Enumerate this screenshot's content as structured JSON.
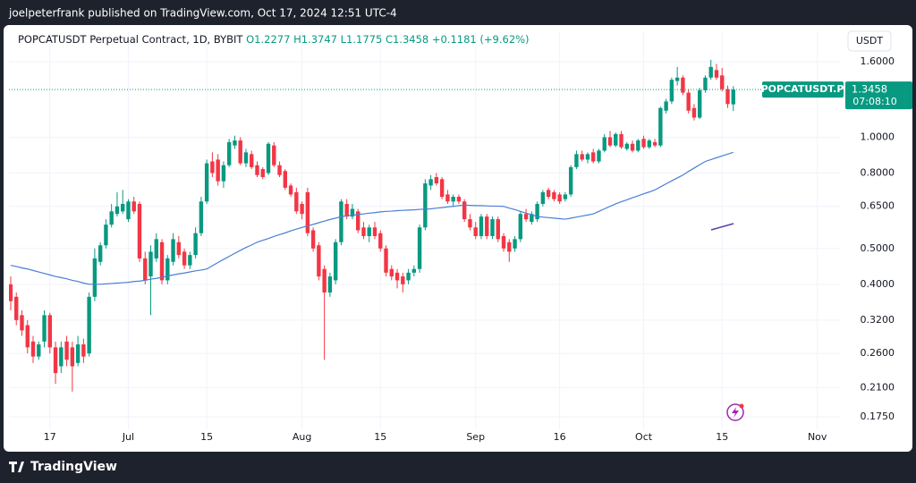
{
  "header": {
    "published": "joelpeterfrank published on TradingView.com, Oct 17, 2024 12:51 UTC-4"
  },
  "footer": {
    "brand": "TradingView"
  },
  "chart_data": {
    "type": "candlestick",
    "legend": {
      "symbol": "POPCATUSDT Perpetual Contract, 1D, BYBIT",
      "open": "O1.2277",
      "high": "H1.3747",
      "low": "L1.1775",
      "close": "C1.3458",
      "change": "+0.1181 (+9.62%)"
    },
    "currency": "USDT",
    "tag_symbol": "POPCATUSDT.P",
    "last_price": 1.3458,
    "countdown": "07:08:10",
    "up_color": "#089981",
    "down_color": "#f23645",
    "log_scale": true,
    "grid": true,
    "xlim": [
      "2024-06-09",
      "2024-11-06"
    ],
    "ylim": [
      0.162,
      1.935
    ],
    "xticks": [
      {
        "value": "2024-06-17",
        "label": "17"
      },
      {
        "value": "2024-07-01",
        "label": "Jul"
      },
      {
        "value": "2024-07-15",
        "label": "15"
      },
      {
        "value": "2024-08-01",
        "label": "Aug"
      },
      {
        "value": "2024-08-15",
        "label": "15"
      },
      {
        "value": "2024-09-01",
        "label": "Sep"
      },
      {
        "value": "2024-09-16",
        "label": "16"
      },
      {
        "value": "2024-10-01",
        "label": "Oct"
      },
      {
        "value": "2024-10-15",
        "label": "15"
      },
      {
        "value": "2024-11-01",
        "label": "Nov"
      }
    ],
    "yticks": [
      {
        "value": 1.6,
        "label": "1.6000"
      },
      {
        "value": 1.0,
        "label": "1.0000"
      },
      {
        "value": 0.8,
        "label": "0.8000"
      },
      {
        "value": 0.65,
        "label": "0.6500"
      },
      {
        "value": 0.5,
        "label": "0.5000"
      },
      {
        "value": 0.4,
        "label": "0.4000"
      },
      {
        "value": 0.32,
        "label": "0.3200"
      },
      {
        "value": 0.26,
        "label": "0.2600"
      },
      {
        "value": 0.21,
        "label": "0.2100"
      },
      {
        "value": 0.175,
        "label": "0.1750"
      }
    ],
    "x": [
      "2024-06-10",
      "2024-06-11",
      "2024-06-12",
      "2024-06-13",
      "2024-06-14",
      "2024-06-15",
      "2024-06-16",
      "2024-06-17",
      "2024-06-18",
      "2024-06-19",
      "2024-06-20",
      "2024-06-21",
      "2024-06-22",
      "2024-06-23",
      "2024-06-24",
      "2024-06-25",
      "2024-06-26",
      "2024-06-27",
      "2024-06-28",
      "2024-06-29",
      "2024-06-30",
      "2024-07-01",
      "2024-07-02",
      "2024-07-03",
      "2024-07-04",
      "2024-07-05",
      "2024-07-06",
      "2024-07-07",
      "2024-07-08",
      "2024-07-09",
      "2024-07-10",
      "2024-07-11",
      "2024-07-12",
      "2024-07-13",
      "2024-07-14",
      "2024-07-15",
      "2024-07-16",
      "2024-07-17",
      "2024-07-18",
      "2024-07-19",
      "2024-07-20",
      "2024-07-21",
      "2024-07-22",
      "2024-07-23",
      "2024-07-24",
      "2024-07-25",
      "2024-07-26",
      "2024-07-27",
      "2024-07-28",
      "2024-07-29",
      "2024-07-30",
      "2024-07-31",
      "2024-08-01",
      "2024-08-02",
      "2024-08-03",
      "2024-08-04",
      "2024-08-05",
      "2024-08-06",
      "2024-08-07",
      "2024-08-08",
      "2024-08-09",
      "2024-08-10",
      "2024-08-11",
      "2024-08-12",
      "2024-08-13",
      "2024-08-14",
      "2024-08-15",
      "2024-08-16",
      "2024-08-17",
      "2024-08-18",
      "2024-08-19",
      "2024-08-20",
      "2024-08-21",
      "2024-08-22",
      "2024-08-23",
      "2024-08-24",
      "2024-08-25",
      "2024-08-26",
      "2024-08-27",
      "2024-08-28",
      "2024-08-29",
      "2024-08-30",
      "2024-08-31",
      "2024-09-01",
      "2024-09-02",
      "2024-09-03",
      "2024-09-04",
      "2024-09-05",
      "2024-09-06",
      "2024-09-07",
      "2024-09-08",
      "2024-09-09",
      "2024-09-10",
      "2024-09-11",
      "2024-09-12",
      "2024-09-13",
      "2024-09-14",
      "2024-09-15",
      "2024-09-16",
      "2024-09-17",
      "2024-09-18",
      "2024-09-19",
      "2024-09-20",
      "2024-09-21",
      "2024-09-22",
      "2024-09-23",
      "2024-09-24",
      "2024-09-25",
      "2024-09-26",
      "2024-09-27",
      "2024-09-28",
      "2024-09-29",
      "2024-09-30",
      "2024-10-01",
      "2024-10-02",
      "2024-10-03",
      "2024-10-04",
      "2024-10-05",
      "2024-10-06",
      "2024-10-07",
      "2024-10-08",
      "2024-10-09",
      "2024-10-10",
      "2024-10-11",
      "2024-10-12",
      "2024-10-13",
      "2024-10-14",
      "2024-10-15",
      "2024-10-16",
      "2024-10-17"
    ],
    "ohlc": [
      [
        0.4,
        0.42,
        0.34,
        0.36
      ],
      [
        0.37,
        0.38,
        0.31,
        0.32
      ],
      [
        0.33,
        0.34,
        0.29,
        0.3
      ],
      [
        0.31,
        0.32,
        0.26,
        0.27
      ],
      [
        0.28,
        0.29,
        0.245,
        0.255
      ],
      [
        0.255,
        0.28,
        0.25,
        0.275
      ],
      [
        0.28,
        0.34,
        0.27,
        0.33
      ],
      [
        0.33,
        0.335,
        0.26,
        0.27
      ],
      [
        0.27,
        0.28,
        0.215,
        0.23
      ],
      [
        0.24,
        0.28,
        0.23,
        0.27
      ],
      [
        0.28,
        0.29,
        0.24,
        0.25
      ],
      [
        0.27,
        0.28,
        0.205,
        0.24
      ],
      [
        0.245,
        0.29,
        0.24,
        0.275
      ],
      [
        0.275,
        0.285,
        0.245,
        0.255
      ],
      [
        0.26,
        0.38,
        0.255,
        0.37
      ],
      [
        0.37,
        0.5,
        0.36,
        0.47
      ],
      [
        0.46,
        0.52,
        0.45,
        0.51
      ],
      [
        0.51,
        0.6,
        0.5,
        0.58
      ],
      [
        0.58,
        0.66,
        0.57,
        0.63
      ],
      [
        0.62,
        0.71,
        0.61,
        0.65
      ],
      [
        0.63,
        0.72,
        0.62,
        0.66
      ],
      [
        0.6,
        0.68,
        0.59,
        0.67
      ],
      [
        0.67,
        0.69,
        0.62,
        0.63
      ],
      [
        0.66,
        0.67,
        0.46,
        0.47
      ],
      [
        0.47,
        0.49,
        0.4,
        0.41
      ],
      [
        0.42,
        0.51,
        0.33,
        0.49
      ],
      [
        0.47,
        0.55,
        0.46,
        0.53
      ],
      [
        0.52,
        0.53,
        0.4,
        0.41
      ],
      [
        0.41,
        0.48,
        0.4,
        0.47
      ],
      [
        0.46,
        0.55,
        0.45,
        0.53
      ],
      [
        0.52,
        0.54,
        0.47,
        0.48
      ],
      [
        0.49,
        0.5,
        0.44,
        0.45
      ],
      [
        0.45,
        0.49,
        0.44,
        0.48
      ],
      [
        0.48,
        0.57,
        0.47,
        0.55
      ],
      [
        0.55,
        0.69,
        0.54,
        0.67
      ],
      [
        0.67,
        0.87,
        0.66,
        0.85
      ],
      [
        0.86,
        0.91,
        0.78,
        0.8
      ],
      [
        0.87,
        0.9,
        0.74,
        0.76
      ],
      [
        0.76,
        0.86,
        0.73,
        0.84
      ],
      [
        0.84,
        0.99,
        0.83,
        0.97
      ],
      [
        0.95,
        1.01,
        0.93,
        0.98
      ],
      [
        0.98,
        1.0,
        0.84,
        0.85
      ],
      [
        0.85,
        0.93,
        0.83,
        0.91
      ],
      [
        0.9,
        0.92,
        0.82,
        0.83
      ],
      [
        0.84,
        0.86,
        0.78,
        0.79
      ],
      [
        0.82,
        0.83,
        0.77,
        0.78
      ],
      [
        0.8,
        0.97,
        0.79,
        0.96
      ],
      [
        0.95,
        0.97,
        0.83,
        0.84
      ],
      [
        0.84,
        0.86,
        0.78,
        0.79
      ],
      [
        0.81,
        0.82,
        0.72,
        0.73
      ],
      [
        0.74,
        0.75,
        0.69,
        0.7
      ],
      [
        0.71,
        0.73,
        0.62,
        0.63
      ],
      [
        0.66,
        0.67,
        0.6,
        0.62
      ],
      [
        0.71,
        0.73,
        0.54,
        0.55
      ],
      [
        0.56,
        0.57,
        0.49,
        0.5
      ],
      [
        0.51,
        0.52,
        0.41,
        0.42
      ],
      [
        0.44,
        0.45,
        0.25,
        0.38
      ],
      [
        0.38,
        0.43,
        0.37,
        0.42
      ],
      [
        0.41,
        0.53,
        0.4,
        0.52
      ],
      [
        0.52,
        0.68,
        0.51,
        0.67
      ],
      [
        0.66,
        0.68,
        0.6,
        0.61
      ],
      [
        0.61,
        0.66,
        0.6,
        0.64
      ],
      [
        0.63,
        0.64,
        0.55,
        0.56
      ],
      [
        0.57,
        0.59,
        0.53,
        0.54
      ],
      [
        0.54,
        0.58,
        0.52,
        0.57
      ],
      [
        0.57,
        0.59,
        0.53,
        0.54
      ],
      [
        0.55,
        0.56,
        0.49,
        0.5
      ],
      [
        0.5,
        0.51,
        0.42,
        0.43
      ],
      [
        0.44,
        0.45,
        0.41,
        0.42
      ],
      [
        0.43,
        0.44,
        0.39,
        0.41
      ],
      [
        0.42,
        0.43,
        0.38,
        0.4
      ],
      [
        0.41,
        0.44,
        0.4,
        0.43
      ],
      [
        0.43,
        0.45,
        0.42,
        0.44
      ],
      [
        0.44,
        0.58,
        0.43,
        0.57
      ],
      [
        0.57,
        0.77,
        0.56,
        0.75
      ],
      [
        0.74,
        0.79,
        0.72,
        0.77
      ],
      [
        0.78,
        0.8,
        0.74,
        0.75
      ],
      [
        0.77,
        0.78,
        0.68,
        0.69
      ],
      [
        0.7,
        0.72,
        0.66,
        0.67
      ],
      [
        0.67,
        0.7,
        0.65,
        0.69
      ],
      [
        0.69,
        0.7,
        0.66,
        0.67
      ],
      [
        0.67,
        0.68,
        0.59,
        0.6
      ],
      [
        0.6,
        0.62,
        0.56,
        0.57
      ],
      [
        0.57,
        0.59,
        0.53,
        0.54
      ],
      [
        0.54,
        0.62,
        0.53,
        0.61
      ],
      [
        0.61,
        0.62,
        0.53,
        0.54
      ],
      [
        0.54,
        0.61,
        0.53,
        0.6
      ],
      [
        0.6,
        0.61,
        0.52,
        0.53
      ],
      [
        0.54,
        0.55,
        0.49,
        0.5
      ],
      [
        0.52,
        0.53,
        0.46,
        0.49
      ],
      [
        0.5,
        0.54,
        0.49,
        0.53
      ],
      [
        0.53,
        0.63,
        0.52,
        0.62
      ],
      [
        0.62,
        0.64,
        0.59,
        0.6
      ],
      [
        0.59,
        0.63,
        0.58,
        0.62
      ],
      [
        0.6,
        0.67,
        0.59,
        0.66
      ],
      [
        0.66,
        0.72,
        0.65,
        0.71
      ],
      [
        0.72,
        0.73,
        0.68,
        0.69
      ],
      [
        0.71,
        0.72,
        0.67,
        0.68
      ],
      [
        0.7,
        0.71,
        0.66,
        0.67
      ],
      [
        0.68,
        0.71,
        0.67,
        0.7
      ],
      [
        0.7,
        0.84,
        0.69,
        0.83
      ],
      [
        0.83,
        0.92,
        0.82,
        0.9
      ],
      [
        0.9,
        0.92,
        0.86,
        0.87
      ],
      [
        0.87,
        0.91,
        0.85,
        0.9
      ],
      [
        0.91,
        0.93,
        0.85,
        0.86
      ],
      [
        0.86,
        0.93,
        0.85,
        0.92
      ],
      [
        0.92,
        1.02,
        0.91,
        1.0
      ],
      [
        1.0,
        1.04,
        0.94,
        0.95
      ],
      [
        0.95,
        1.03,
        0.94,
        1.02
      ],
      [
        1.02,
        1.04,
        0.93,
        0.94
      ],
      [
        0.93,
        0.97,
        0.92,
        0.96
      ],
      [
        0.96,
        0.98,
        0.91,
        0.92
      ],
      [
        0.92,
        0.99,
        0.91,
        0.98
      ],
      [
        0.99,
        1.01,
        0.93,
        0.94
      ],
      [
        0.94,
        0.99,
        0.93,
        0.98
      ],
      [
        0.97,
        0.99,
        0.94,
        0.95
      ],
      [
        0.95,
        1.21,
        0.94,
        1.2
      ],
      [
        1.18,
        1.27,
        1.16,
        1.25
      ],
      [
        1.25,
        1.45,
        1.23,
        1.43
      ],
      [
        1.42,
        1.55,
        1.38,
        1.45
      ],
      [
        1.45,
        1.47,
        1.3,
        1.32
      ],
      [
        1.32,
        1.35,
        1.16,
        1.18
      ],
      [
        1.2,
        1.23,
        1.11,
        1.13
      ],
      [
        1.13,
        1.36,
        1.12,
        1.34
      ],
      [
        1.34,
        1.47,
        1.32,
        1.45
      ],
      [
        1.45,
        1.62,
        1.43,
        1.55
      ],
      [
        1.52,
        1.58,
        1.43,
        1.45
      ],
      [
        1.47,
        1.54,
        1.33,
        1.35
      ],
      [
        1.35,
        1.38,
        1.2,
        1.23
      ],
      [
        1.2277,
        1.3747,
        1.1775,
        1.3458
      ]
    ],
    "ma": {
      "color": "#4a7fd4",
      "values": [
        0.45,
        0.447,
        0.443,
        0.44,
        0.436,
        0.432,
        0.428,
        0.424,
        0.42,
        0.417,
        0.414,
        0.41,
        0.407,
        0.403,
        0.4,
        0.4,
        0.4,
        0.401,
        0.402,
        0.403,
        0.404,
        0.405,
        0.407,
        0.408,
        0.41,
        0.413,
        0.415,
        0.418,
        0.421,
        0.424,
        0.427,
        0.429,
        0.432,
        0.435,
        0.437,
        0.44,
        0.449,
        0.458,
        0.467,
        0.476,
        0.485,
        0.494,
        0.503,
        0.511,
        0.52,
        0.526,
        0.532,
        0.539,
        0.545,
        0.551,
        0.558,
        0.564,
        0.57,
        0.576,
        0.581,
        0.587,
        0.593,
        0.599,
        0.604,
        0.61,
        0.613,
        0.615,
        0.618,
        0.62,
        0.623,
        0.625,
        0.628,
        0.63,
        0.631,
        0.633,
        0.634,
        0.635,
        0.636,
        0.638,
        0.639,
        0.64,
        0.643,
        0.645,
        0.648,
        0.65,
        0.653,
        0.655,
        0.654,
        0.653,
        0.653,
        0.652,
        0.651,
        0.651,
        0.65,
        0.643,
        0.637,
        0.63,
        0.623,
        0.617,
        0.61,
        0.608,
        0.606,
        0.604,
        0.602,
        0.6,
        0.604,
        0.608,
        0.612,
        0.616,
        0.62,
        0.63,
        0.64,
        0.65,
        0.66,
        0.669,
        0.677,
        0.686,
        0.694,
        0.703,
        0.711,
        0.72,
        0.734,
        0.748,
        0.762,
        0.776,
        0.79,
        0.808,
        0.825,
        0.843,
        0.86,
        0.87,
        0.88,
        0.89,
        0.9,
        0.91
      ]
    }
  }
}
